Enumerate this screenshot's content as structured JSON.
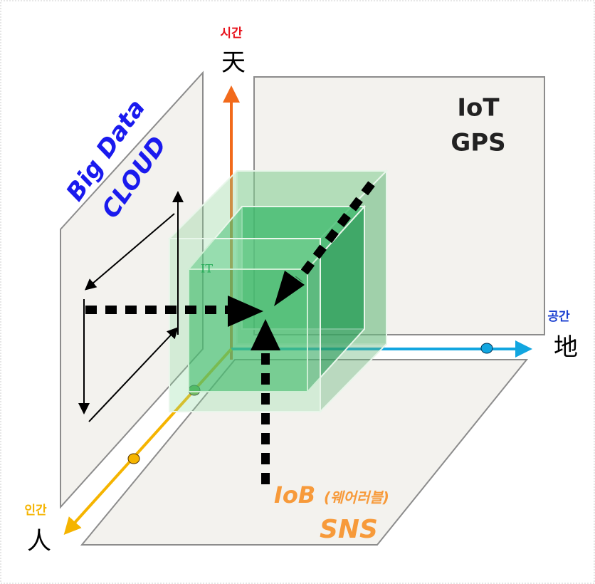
{
  "axes": {
    "time": {
      "label": "시간",
      "hanja": "天"
    },
    "space": {
      "label": "공간",
      "hanja": "地"
    },
    "human": {
      "label": "인간",
      "hanja": "人"
    }
  },
  "planes": {
    "back": [
      "IoT",
      "GPS"
    ],
    "left": [
      "Big Data",
      "CLOUD"
    ],
    "bottom": {
      "title": "IoB",
      "sub": "(웨어러블)",
      "line2": "SNS"
    }
  },
  "cube_label": "IT"
}
